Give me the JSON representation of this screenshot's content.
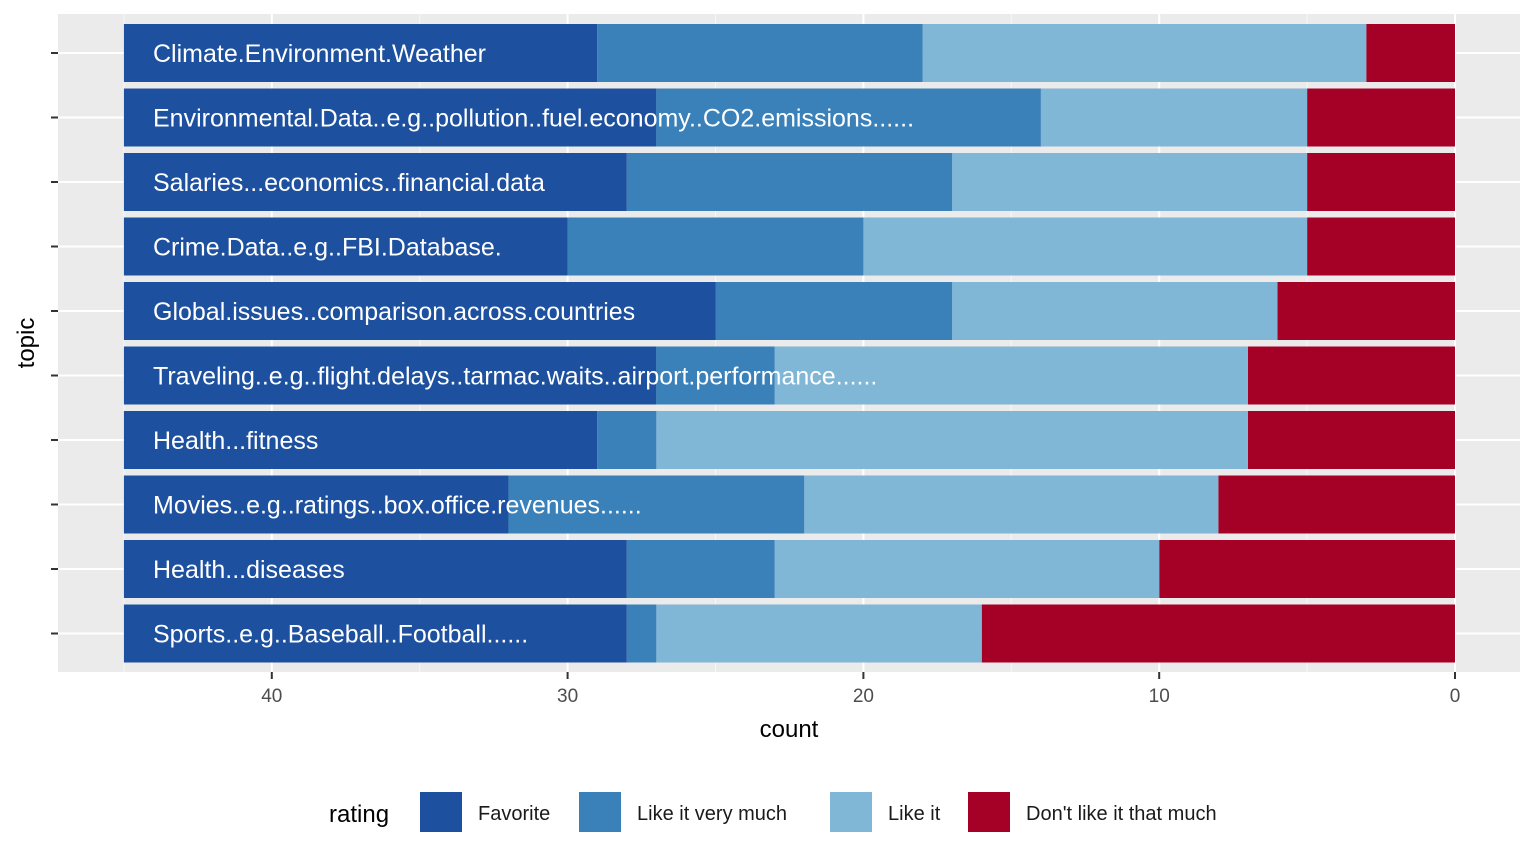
{
  "chart_data": {
    "type": "bar",
    "orientation": "horizontal-stacked",
    "x_axis_reversed": true,
    "xlabel": "count",
    "ylabel": "topic",
    "xlim": [
      0,
      47
    ],
    "x_ticks": [
      40,
      30,
      20,
      10,
      0
    ],
    "x_tick_labels": [
      "40",
      "30",
      "20",
      "10",
      "0"
    ],
    "grid": true,
    "legend_position": "bottom",
    "legend_title": "rating",
    "categories": [
      "Climate.Environment.Weather",
      "Environmental.Data..e.g..pollution..fuel.economy..CO2.emissions......",
      "Salaries...economics..financial.data",
      "Crime.Data..e.g..FBI.Database.",
      "Global.issues..comparison.across.countries",
      "Traveling..e.g..flight.delays..tarmac.waits..airport.performance......",
      "Health...fitness",
      "Movies..e.g..ratings..box.office.revenues......",
      "Health...diseases",
      "Sports..e.g..Baseball..Football......"
    ],
    "series": [
      {
        "name": "Don't like it that much",
        "color": "#A50026",
        "values": [
          3,
          5,
          5,
          5,
          6,
          7,
          7,
          8,
          10,
          16
        ]
      },
      {
        "name": "Like it",
        "color": "#80B6D6",
        "values": [
          15,
          9,
          12,
          15,
          11,
          16,
          20,
          14,
          13,
          11
        ]
      },
      {
        "name": "Like it very much",
        "color": "#3A81BA",
        "values": [
          11,
          13,
          11,
          10,
          8,
          4,
          2,
          10,
          5,
          1
        ]
      },
      {
        "name": "Favorite",
        "color": "#1D509E",
        "values": [
          16,
          18,
          17,
          15,
          20,
          18,
          16,
          13,
          17,
          17
        ]
      }
    ],
    "legend_order": [
      "Favorite",
      "Like it very much",
      "Like it",
      "Don't like it that much"
    ]
  }
}
